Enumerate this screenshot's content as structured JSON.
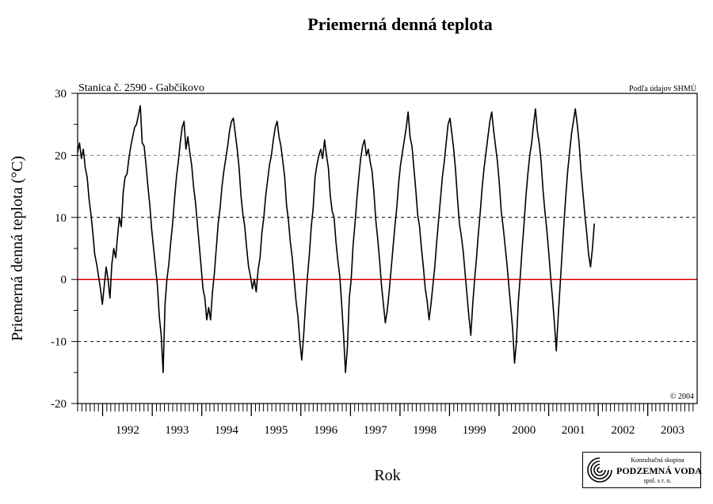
{
  "chart_data": {
    "type": "line",
    "title": "Priemerná denná teplota",
    "ylabel": "Priemerná denná teplota (°C)",
    "xlabel": "Rok",
    "station_label": "Stanica č. 2590 - Gabčíkovo",
    "source_label": "Podľa údajov SHMÚ",
    "copyright_label": "© 2004",
    "ylim": [
      -20,
      30
    ],
    "xlim": [
      "1991-07-01",
      "2003-12-31"
    ],
    "yticks": [
      -20,
      -10,
      0,
      10,
      20,
      30
    ],
    "years": [
      "1992",
      "1993",
      "1994",
      "1995",
      "1996",
      "1997",
      "1998",
      "1999",
      "2000",
      "2001",
      "2002",
      "2003"
    ],
    "reference_lines": [
      {
        "y": 20,
        "style": "dashed",
        "color": "#808080"
      },
      {
        "y": 10,
        "style": "dashed",
        "color": "#000000"
      },
      {
        "y": 0,
        "style": "solid",
        "color": "#e00000"
      },
      {
        "y": -10,
        "style": "dashed",
        "color": "#000000"
      }
    ],
    "grid": false,
    "series": [
      {
        "color": "#000000",
        "date_step": "14 days",
        "start_date": "1991-07-01",
        "values": [
          20.5,
          22.0,
          19.5,
          21.0,
          18.0,
          16.5,
          13.0,
          10.5,
          7.5,
          4.0,
          2.5,
          0.5,
          -1.5,
          -4.0,
          -1.0,
          2.0,
          0.0,
          -3.0,
          2.5,
          5.0,
          3.5,
          7.0,
          10.0,
          8.5,
          14.0,
          16.5,
          17.0,
          19.5,
          21.5,
          23.0,
          24.5,
          25.0,
          26.5,
          28.0,
          22.0,
          21.5,
          18.5,
          15.0,
          12.0,
          8.0,
          5.0,
          2.0,
          -1.0,
          -6.0,
          -9.0,
          -15.0,
          -4.0,
          0.0,
          2.5,
          6.0,
          9.0,
          13.0,
          16.5,
          19.0,
          22.0,
          24.5,
          25.5,
          21.0,
          23.0,
          20.5,
          18.5,
          15.0,
          12.5,
          9.0,
          5.5,
          2.0,
          -1.5,
          -3.0,
          -6.5,
          -4.5,
          -6.5,
          -2.0,
          1.0,
          5.0,
          9.0,
          11.5,
          15.0,
          17.5,
          19.5,
          21.5,
          24.0,
          25.5,
          26.0,
          23.5,
          21.0,
          18.0,
          13.5,
          10.5,
          8.5,
          5.0,
          2.0,
          0.5,
          -1.5,
          0.0,
          -2.0,
          1.5,
          3.5,
          7.5,
          10.0,
          13.5,
          16.0,
          18.5,
          20.0,
          22.5,
          24.5,
          25.5,
          23.0,
          21.5,
          19.0,
          16.5,
          12.0,
          9.5,
          6.0,
          3.5,
          0.0,
          -3.5,
          -6.0,
          -10.0,
          -13.0,
          -9.0,
          -4.0,
          0.5,
          4.0,
          8.5,
          11.5,
          16.5,
          18.5,
          20.0,
          21.0,
          19.5,
          22.5,
          20.0,
          18.0,
          13.5,
          11.0,
          10.0,
          6.0,
          3.0,
          0.5,
          -4.0,
          -9.0,
          -15.0,
          -11.0,
          -3.0,
          0.0,
          5.5,
          9.0,
          13.0,
          16.5,
          19.5,
          21.5,
          22.5,
          20.0,
          21.0,
          19.0,
          17.5,
          14.0,
          9.5,
          6.5,
          3.0,
          -1.0,
          -4.0,
          -7.0,
          -5.0,
          -2.0,
          1.5,
          5.0,
          8.5,
          11.5,
          15.5,
          18.5,
          20.5,
          22.5,
          24.5,
          27.0,
          23.0,
          21.5,
          18.0,
          14.5,
          10.5,
          8.5,
          5.0,
          2.0,
          -1.5,
          -3.5,
          -6.5,
          -4.0,
          -1.0,
          2.0,
          6.0,
          9.5,
          13.0,
          16.5,
          19.0,
          22.0,
          25.0,
          26.0,
          23.5,
          21.0,
          17.5,
          13.0,
          9.0,
          7.0,
          4.5,
          1.0,
          -2.5,
          -6.0,
          -9.0,
          -4.0,
          0.0,
          3.5,
          7.5,
          11.0,
          15.0,
          18.0,
          20.5,
          23.0,
          25.5,
          27.0,
          24.0,
          21.5,
          19.0,
          15.5,
          11.0,
          8.5,
          5.5,
          2.5,
          -1.0,
          -4.5,
          -8.0,
          -13.5,
          -10.0,
          -3.5,
          0.5,
          5.0,
          9.0,
          13.5,
          17.0,
          20.0,
          22.0,
          25.0,
          27.5,
          24.0,
          22.0,
          19.0,
          14.5,
          11.0,
          8.0,
          4.5,
          0.5,
          -3.0,
          -7.0,
          -11.5,
          -6.0,
          -1.0,
          4.0,
          9.0,
          13.5,
          17.5,
          20.5,
          23.5,
          25.5,
          27.5,
          25.0,
          22.0,
          17.5,
          14.0,
          10.5,
          7.5,
          4.0,
          2.0,
          5.0,
          9.0
        ]
      }
    ]
  },
  "logo": {
    "line1": "Konzultačná skupina",
    "line2": "PODZEMNÁ VODA",
    "line3": "spol. s r. o."
  }
}
